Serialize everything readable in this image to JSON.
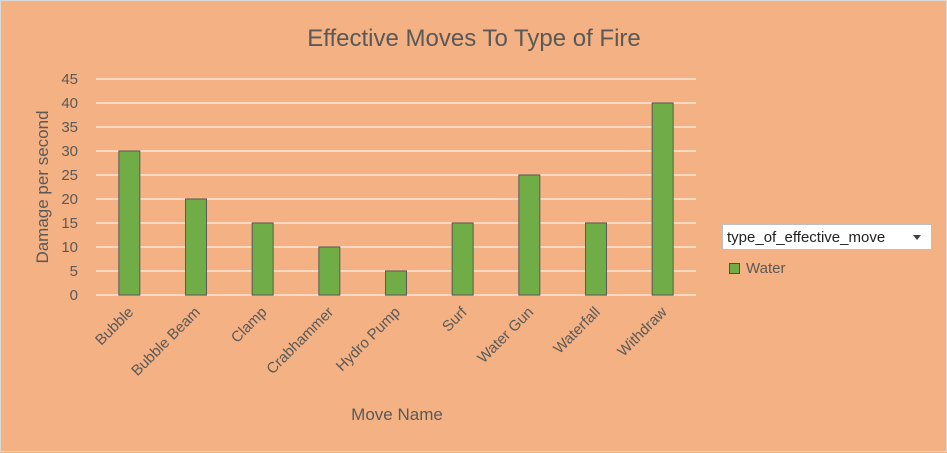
{
  "colors": {
    "background": "#f4b183",
    "bar_fill": "#70ad47",
    "bar_stroke": "#595959",
    "gridline": "#ffffff",
    "text": "#595959"
  },
  "filter": {
    "label": "type_of_effective_move",
    "icon": "dropdown-arrow-icon"
  },
  "chart_data": {
    "type": "bar",
    "title": "Effective Moves To Type of Fire",
    "xlabel": "Move Name",
    "ylabel": "Damage per second",
    "categories": [
      "Bubble",
      "Bubble Beam",
      "Clamp",
      "Crabhammer",
      "Hydro Pump",
      "Surf",
      "Water Gun",
      "Waterfall",
      "Withdraw"
    ],
    "series": [
      {
        "name": "Water",
        "values": [
          30,
          20,
          15,
          10,
          5,
          15,
          25,
          15,
          40
        ]
      }
    ],
    "ylim": [
      0,
      45
    ],
    "yticks": [
      "0",
      "5",
      "10",
      "15",
      "20",
      "25",
      "30",
      "35",
      "40",
      "45"
    ],
    "grid": true,
    "legend_position": "right"
  }
}
